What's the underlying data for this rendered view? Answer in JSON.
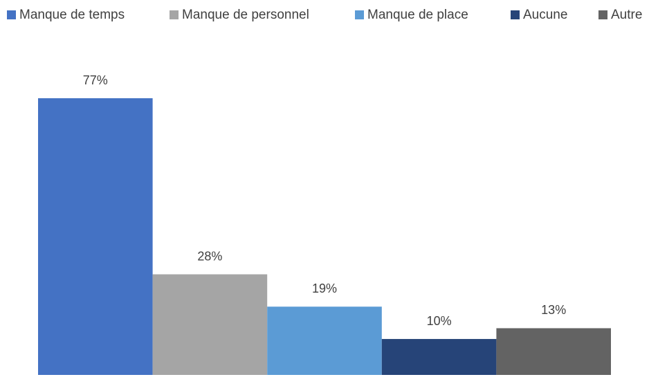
{
  "chart_data": {
    "type": "bar",
    "categories": [
      null
    ],
    "series": [
      {
        "name": "Manque de temps",
        "color": "#4472c4",
        "values": [
          77
        ],
        "value_labels": [
          "77%"
        ]
      },
      {
        "name": "Manque de personnel",
        "color": "#a5a5a5",
        "values": [
          28
        ],
        "value_labels": [
          "28%"
        ]
      },
      {
        "name": "Manque de place",
        "color": "#5b9bd5",
        "values": [
          19
        ],
        "value_labels": [
          "19%"
        ]
      },
      {
        "name": "Aucune",
        "color": "#264478",
        "values": [
          10
        ],
        "value_labels": [
          "10%"
        ]
      },
      {
        "name": "Autre",
        "color": "#636363",
        "values": [
          13
        ],
        "value_labels": [
          "13%"
        ]
      }
    ],
    "legend": "top"
  }
}
